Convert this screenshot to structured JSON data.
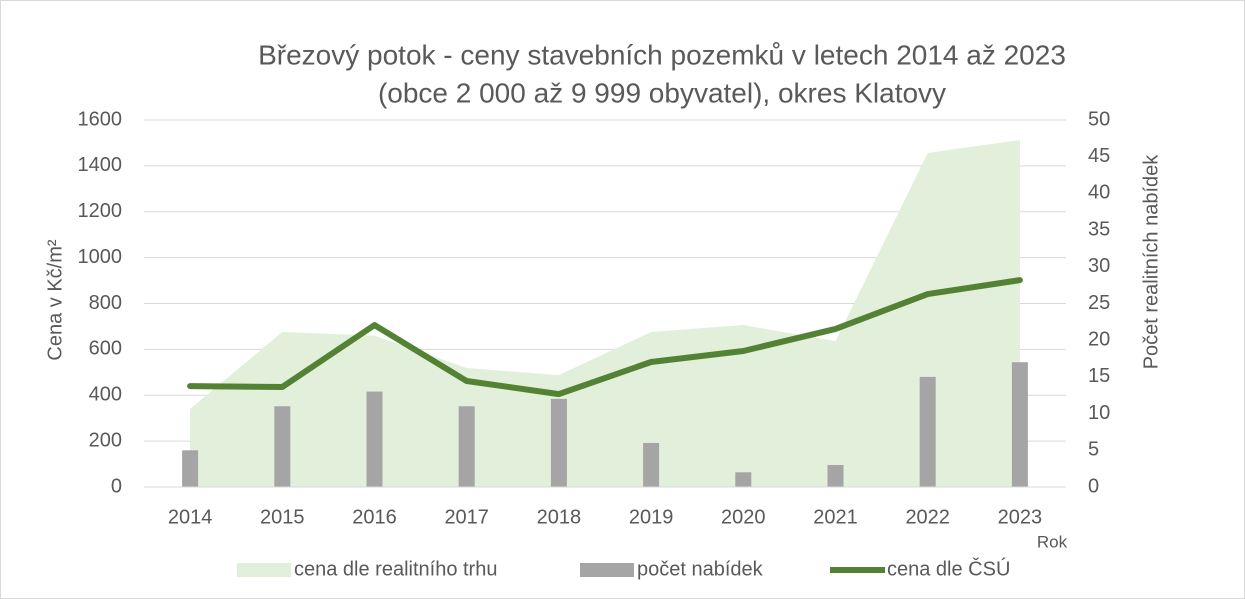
{
  "chart_data": {
    "type": "combo",
    "title": [
      "Březový potok - ceny stavebních pozemků v letech 2014 až 2023",
      "(obce 2 000 až 9 999 obyvatel), okres Klatovy"
    ],
    "y_label": "Cena v Kč/m²",
    "y2_label": "Počet realitních nabídek",
    "x_label": "Rok",
    "categories": [
      "2014",
      "2015",
      "2016",
      "2017",
      "2018",
      "2019",
      "2020",
      "2021",
      "2022",
      "2023"
    ],
    "series": [
      {
        "name": "cena dle realitního trhu",
        "type": "area",
        "color": "#e2efda",
        "values": [
          340,
          676,
          660,
          519,
          488,
          676,
          706,
          636,
          1456,
          1513
        ]
      },
      {
        "name": "počet nabídek",
        "type": "bar",
        "axis": "y2",
        "color": "#a5a5a5",
        "values": [
          5,
          11,
          13,
          11,
          12,
          6,
          2,
          3,
          15,
          17
        ]
      },
      {
        "name": "cena dle ČSÚ",
        "type": "line",
        "color": "#548235",
        "values": [
          440,
          436,
          706,
          462,
          405,
          545,
          593,
          689,
          841,
          902
        ]
      }
    ],
    "ylim": [
      0,
      1600
    ],
    "yticks": [
      0,
      200,
      400,
      600,
      800,
      1000,
      1200,
      1400,
      1600
    ],
    "y2lim": [
      0,
      50
    ],
    "y2ticks": [
      0,
      5,
      10,
      15,
      20,
      25,
      30,
      35,
      40,
      45,
      50
    ],
    "grid": true,
    "legend": "bottom"
  }
}
